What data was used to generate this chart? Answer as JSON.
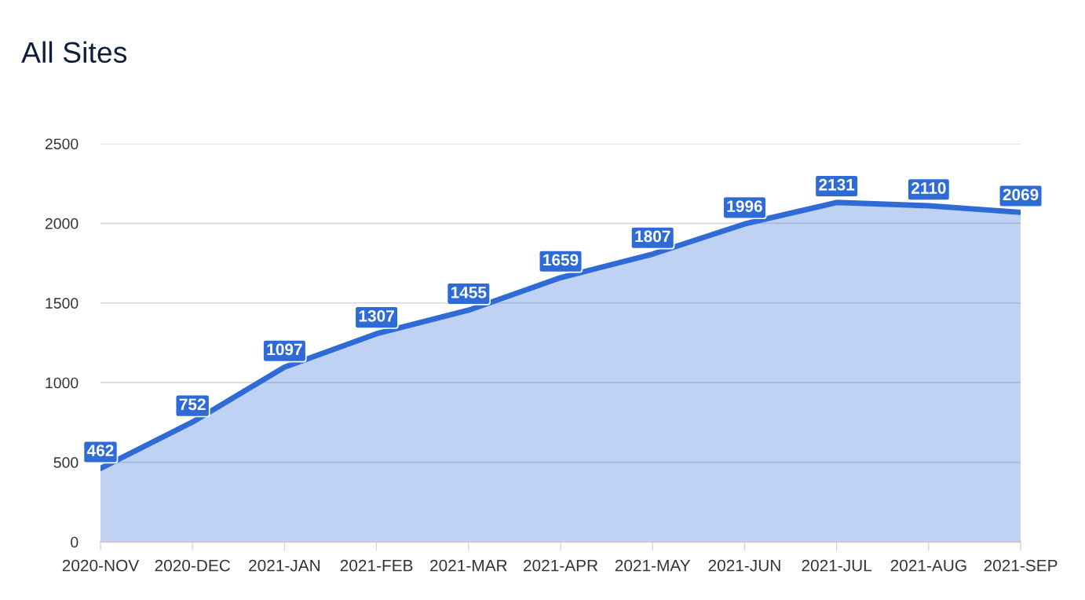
{
  "chart_data": {
    "type": "area",
    "title": "All Sites",
    "categories": [
      "2020-NOV",
      "2020-DEC",
      "2021-JAN",
      "2021-FEB",
      "2021-MAR",
      "2021-APR",
      "2021-MAY",
      "2021-JUN",
      "2021-JUL",
      "2021-AUG",
      "2021-SEP"
    ],
    "values": [
      462,
      752,
      1097,
      1307,
      1455,
      1659,
      1807,
      1996,
      2131,
      2110,
      2069
    ],
    "color": "#2f6bd6",
    "ylim": [
      0,
      2500
    ],
    "yticks": [
      0,
      500,
      1000,
      1500,
      2000,
      2500
    ],
    "grid": "y",
    "data_labels": true
  }
}
